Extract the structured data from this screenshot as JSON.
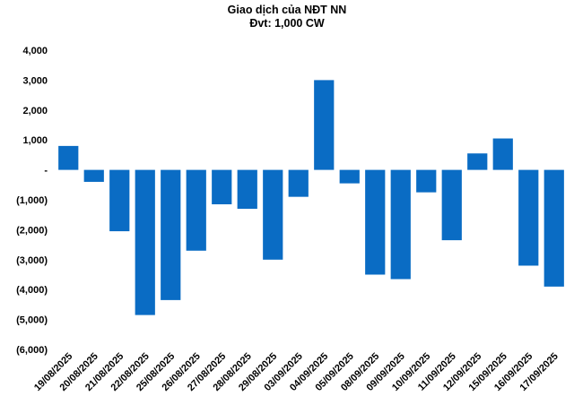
{
  "chart_data": {
    "type": "bar",
    "title": "Giao dịch của NĐT NN",
    "subtitle": "Đvt: 1,000 CW",
    "xlabel": "",
    "ylabel": "",
    "ylim": [
      -6000,
      4000
    ],
    "yticks": [
      4000,
      3000,
      2000,
      1000,
      0,
      -1000,
      -2000,
      -3000,
      -4000,
      -5000,
      -6000
    ],
    "ytick_labels": [
      "4,000",
      "3,000",
      "2,000",
      "1,000",
      "-",
      "(1,000)",
      "(2,000)",
      "(3,000)",
      "(4,000)",
      "(5,000)",
      "(6,000)"
    ],
    "grid": false,
    "legend": "none",
    "color": "#0A6CC4",
    "categories": [
      "19/08/2025",
      "20/08/2025",
      "21/08/2025",
      "22/08/2025",
      "25/08/2025",
      "26/08/2025",
      "27/08/2025",
      "28/08/2025",
      "29/08/2025",
      "03/09/2025",
      "04/09/2025",
      "05/09/2025",
      "08/09/2025",
      "09/09/2025",
      "10/09/2025",
      "11/09/2025",
      "12/09/2025",
      "15/09/2025",
      "16/09/2025",
      "17/09/2025"
    ],
    "values": [
      800,
      -400,
      -2050,
      -4850,
      -4350,
      -2700,
      -1150,
      -1300,
      -3000,
      -900,
      3000,
      -450,
      -3500,
      -3650,
      -750,
      -2350,
      550,
      1050,
      -3200,
      -3900
    ]
  }
}
